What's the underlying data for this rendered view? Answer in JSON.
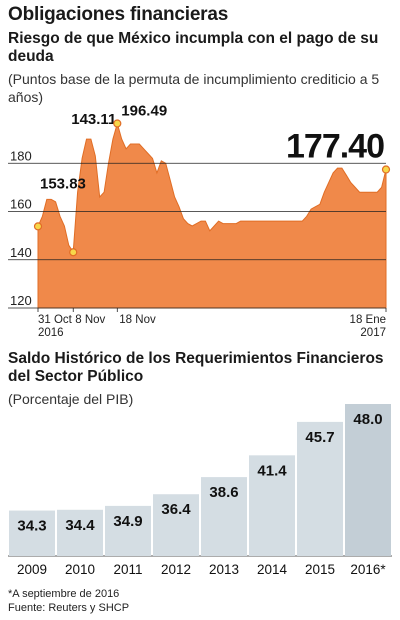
{
  "page": {
    "title": "Obligaciones financieras",
    "footnote": "*A septiembre de 2016",
    "source": "Fuente: Reuters y SHCP"
  },
  "colors": {
    "area_fill": "#f0894a",
    "area_line": "#e06d25",
    "bar_fill": "#d4dde3",
    "bar_last": "#c3ced6",
    "marker": "#f7d84a",
    "grid": "#222222"
  },
  "chart_data": [
    {
      "type": "area",
      "title": "Riesgo de que México incumpla con el pago de su deuda",
      "subtitle": "(Puntos base de la permuta de incumplimiento crediticio a 5 años)",
      "ylim": [
        120,
        200
      ],
      "yticks": [
        120,
        140,
        160,
        180
      ],
      "grid": true,
      "x_tick_labels": [
        {
          "label": "31 Oct",
          "label2": "2016",
          "x": 0
        },
        {
          "label": "8 Nov",
          "label2": "",
          "x": 8
        },
        {
          "label": "18 Nov",
          "label2": "",
          "x": 18
        },
        {
          "label": "18 Ene",
          "label2": "2017",
          "x": 79
        }
      ],
      "x": [
        0,
        1,
        2,
        3,
        4,
        5,
        6,
        7,
        8,
        9,
        10,
        11,
        12,
        13,
        14,
        15,
        16,
        17,
        18,
        19,
        20,
        21,
        22,
        23,
        24,
        25,
        26,
        27,
        28,
        29,
        30,
        31,
        32,
        33,
        34,
        35,
        36,
        37,
        38,
        39,
        40,
        41,
        42,
        43,
        44,
        45,
        46,
        47,
        48,
        49,
        50,
        51,
        52,
        53,
        54,
        55,
        56,
        57,
        58,
        59,
        60,
        61,
        62,
        63,
        64,
        65,
        66,
        67,
        68,
        69,
        70,
        71,
        72,
        73,
        74,
        75,
        76,
        77,
        78,
        79
      ],
      "values": [
        153.83,
        158,
        165,
        165,
        164,
        158,
        154,
        146,
        143.11,
        168,
        182,
        190,
        190,
        183,
        166,
        168,
        180,
        190,
        196.49,
        190,
        186,
        188,
        188,
        188,
        186,
        184,
        182,
        176,
        181,
        180,
        173,
        166,
        162,
        157,
        155,
        154,
        155,
        156,
        156,
        152,
        154,
        156,
        155,
        155,
        155,
        155,
        156,
        156,
        156,
        156,
        156,
        156,
        156,
        156,
        156,
        156,
        156,
        156,
        156,
        156,
        156,
        158,
        161,
        162,
        163,
        168,
        172,
        176,
        178,
        178,
        175,
        172,
        170,
        168,
        168,
        168,
        168,
        168,
        170,
        177.4
      ],
      "labels": [
        {
          "text": "153.83",
          "x": 0,
          "value": 153.83,
          "big": false
        },
        {
          "text": "143.11",
          "x": 8,
          "value": 143.11,
          "big": false
        },
        {
          "text": "196.49",
          "x": 18,
          "value": 196.49,
          "big": false
        },
        {
          "text": "177.40",
          "x": 79,
          "value": 177.4,
          "big": true
        }
      ]
    },
    {
      "type": "bar",
      "title": "Saldo Histórico de los Requerimientos Financieros del Sector Público",
      "subtitle": "(Porcentaje del PIB)",
      "categories": [
        "2009",
        "2010",
        "2011",
        "2012",
        "2013",
        "2014",
        "2015",
        "2016*"
      ],
      "values": [
        34.3,
        34.4,
        34.9,
        36.4,
        38.6,
        41.4,
        45.7,
        48.0
      ],
      "value_labels": [
        "34.3",
        "34.4",
        "34.9",
        "36.4",
        "38.6",
        "41.4",
        "45.7",
        "48.0"
      ],
      "highlight_last": true
    }
  ]
}
